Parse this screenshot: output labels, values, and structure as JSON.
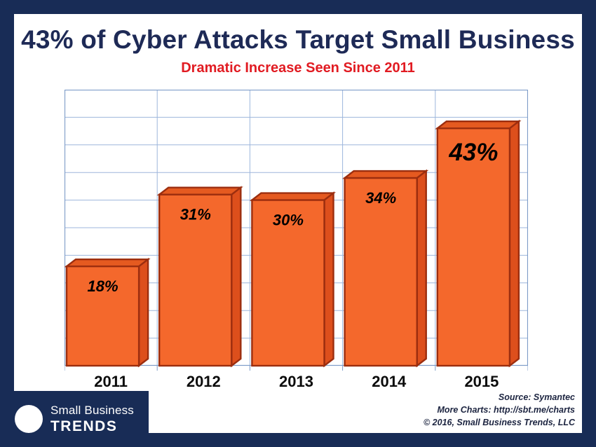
{
  "page": {
    "title": "43% of Cyber Attacks Target Small Business",
    "subtitle": "Dramatic Increase Seen Since 2011"
  },
  "chart_data": {
    "type": "bar",
    "title": "43% of Cyber Attacks Target Small Business",
    "subtitle": "Dramatic Increase Seen Since 2011",
    "categories": [
      "2011",
      "2012",
      "2013",
      "2014",
      "2015"
    ],
    "values": [
      18,
      31,
      30,
      34,
      43
    ],
    "data_labels": [
      "18%",
      "31%",
      "30%",
      "34%",
      "43%"
    ],
    "emphasized_index": 4,
    "xlabel": "",
    "ylabel": "",
    "ylim": [
      0,
      50
    ],
    "y_gridline_step": 5,
    "grid": true,
    "legend": false,
    "colors": {
      "bar_front": "#f4682c",
      "bar_top": "#e55a20",
      "bar_side": "#dd4f1c",
      "bar_stroke": "#9c2e0f",
      "grid_line": "#9db6dc",
      "plot_border": "#7d9cc8"
    }
  },
  "footer": {
    "logo_line1": "Small Business",
    "logo_line2": "TRENDS",
    "source_line1": "Source: Symantec",
    "source_line2": "More Charts: http://sbt.me/charts",
    "source_line3": "© 2016, Small Business Trends, LLC"
  },
  "colors": {
    "frame": "#182c56",
    "title": "#1e2a56",
    "subtitle": "#e11b22"
  }
}
